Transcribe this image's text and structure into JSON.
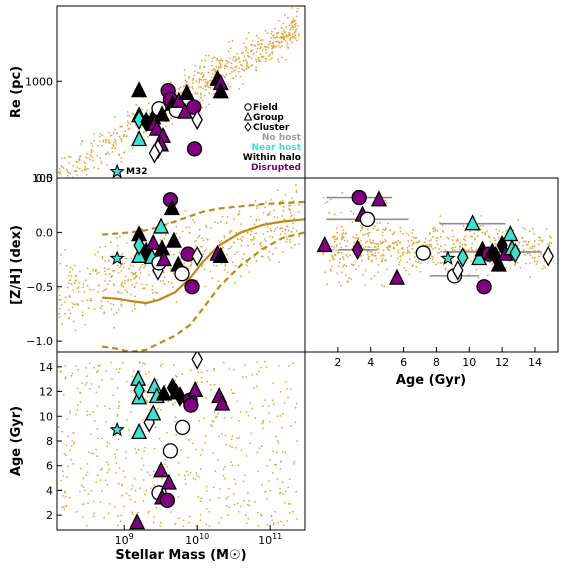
{
  "chart_data": [
    {
      "panel": "top-left",
      "type": "scatter",
      "xlabel": "",
      "ylabel": "Re (pc)",
      "xscale": "log",
      "yscale": "log",
      "xlim": [
        120000000.0,
        300000000000.0
      ],
      "ylim": [
        100,
        6000
      ],
      "xticks": [],
      "yticks": [
        {
          "v": 100,
          "label": "100"
        },
        {
          "v": 1000,
          "label": "1000"
        }
      ],
      "legend": {
        "placement": "lower-right",
        "entries": [
          {
            "marker": "circle",
            "label": "Field",
            "color": "#000000"
          },
          {
            "marker": "triangle",
            "label": "Group",
            "color": "#000000"
          },
          {
            "marker": "diamond",
            "label": "Cluster",
            "color": "#000000"
          },
          {
            "marker": "none",
            "label": "No host",
            "color": "#9a9a9a"
          },
          {
            "marker": "none",
            "label": "Near host",
            "color": "#40e0d0"
          },
          {
            "marker": "none",
            "label": "Within halo",
            "color": "#000000"
          },
          {
            "marker": "none",
            "label": "Disrupted",
            "color": "#800080"
          }
        ]
      },
      "annotations": [
        {
          "text": "M32",
          "x": 800000000.0,
          "y": 116,
          "marker": "star"
        }
      ],
      "background_color": "#e8a33a",
      "points": [
        {
          "x": 1600000000.0,
          "y": 800,
          "m": "triangle",
          "c": "black"
        },
        {
          "x": 1600000000.0,
          "y": 440,
          "m": "triangle",
          "c": "turquoise"
        },
        {
          "x": 1600000000.0,
          "y": 400,
          "m": "diamond",
          "c": "turquoise"
        },
        {
          "x": 1600000000.0,
          "y": 250,
          "m": "triangle",
          "c": "turquoise"
        },
        {
          "x": 2000000000.0,
          "y": 380,
          "m": "diamond",
          "c": "black"
        },
        {
          "x": 2500000000.0,
          "y": 420,
          "m": "triangle",
          "c": "black"
        },
        {
          "x": 2600000000.0,
          "y": 360,
          "m": "triangle",
          "c": "purple"
        },
        {
          "x": 2800000000.0,
          "y": 320,
          "m": "triangle",
          "c": "purple"
        },
        {
          "x": 3000000000.0,
          "y": 520,
          "m": "circle",
          "c": "white"
        },
        {
          "x": 3300000000.0,
          "y": 450,
          "m": "triangle",
          "c": "black"
        },
        {
          "x": 3400000000.0,
          "y": 270,
          "m": "triangle",
          "c": "purple"
        },
        {
          "x": 3200000000.0,
          "y": 220,
          "m": "triangle",
          "c": "purple"
        },
        {
          "x": 2900000000.0,
          "y": 200,
          "m": "diamond",
          "c": "white"
        },
        {
          "x": 2600000000.0,
          "y": 180,
          "m": "diamond",
          "c": "white"
        },
        {
          "x": 4000000000.0,
          "y": 800,
          "m": "circle",
          "c": "purple"
        },
        {
          "x": 4300000000.0,
          "y": 650,
          "m": "circle",
          "c": "purple"
        },
        {
          "x": 4600000000.0,
          "y": 580,
          "m": "triangle",
          "c": "black"
        },
        {
          "x": 5200000000.0,
          "y": 500,
          "m": "circle",
          "c": "white"
        },
        {
          "x": 5600000000.0,
          "y": 620,
          "m": "triangle",
          "c": "purple"
        },
        {
          "x": 6800000000.0,
          "y": 480,
          "m": "triangle",
          "c": "purple"
        },
        {
          "x": 7200000000.0,
          "y": 750,
          "m": "triangle",
          "c": "black"
        },
        {
          "x": 9000000000.0,
          "y": 540,
          "m": "circle",
          "c": "purple"
        },
        {
          "x": 10000000000.0,
          "y": 400,
          "m": "diamond",
          "c": "white"
        },
        {
          "x": 9200000000.0,
          "y": 200,
          "m": "circle",
          "c": "purple"
        },
        {
          "x": 19000000000.0,
          "y": 1050,
          "m": "triangle",
          "c": "black"
        },
        {
          "x": 21000000000.0,
          "y": 950,
          "m": "triangle",
          "c": "purple"
        },
        {
          "x": 21000000000.0,
          "y": 780,
          "m": "triangle",
          "c": "black"
        },
        {
          "x": 800000000.0,
          "y": 116,
          "m": "star",
          "c": "turquoise"
        }
      ]
    },
    {
      "panel": "middle-left",
      "type": "scatter",
      "xlabel": "",
      "ylabel": "[Z/H] (dex)",
      "xscale": "log",
      "xlim": [
        120000000.0,
        300000000000.0
      ],
      "ylim": [
        -1.1,
        0.5
      ],
      "yticks": [
        {
          "v": -1.0,
          "label": "−1.0"
        },
        {
          "v": -0.5,
          "label": "−0.5"
        },
        {
          "v": 0.0,
          "label": "0.0"
        },
        {
          "v": 0.5,
          "label": "0.5"
        }
      ],
      "lines": [
        {
          "style": "solid",
          "color": "#c08a1a",
          "x": [
            500000000.0,
            800000000.0,
            1200000000.0,
            2000000000.0,
            3000000000.0,
            5000000000.0,
            8000000000.0,
            12000000000.0,
            20000000000.0,
            40000000000.0,
            80000000000.0,
            150000000000.0,
            300000000000.0
          ],
          "y": [
            -0.6,
            -0.61,
            -0.63,
            -0.65,
            -0.62,
            -0.55,
            -0.42,
            -0.27,
            -0.12,
            0.0,
            0.07,
            0.1,
            0.12
          ]
        },
        {
          "style": "dashed",
          "color": "#c08a1a",
          "x": [
            500000000.0,
            800000000.0,
            1200000000.0,
            2000000000.0,
            3000000000.0,
            5000000000.0,
            8000000000.0,
            12000000000.0,
            20000000000.0,
            40000000000.0,
            80000000000.0,
            150000000000.0,
            300000000000.0
          ],
          "y": [
            -0.02,
            -0.01,
            0.0,
            0.02,
            0.05,
            0.1,
            0.15,
            0.19,
            0.22,
            0.24,
            0.26,
            0.27,
            0.28
          ]
        },
        {
          "style": "dashed",
          "color": "#c08a1a",
          "x": [
            500000000.0,
            800000000.0,
            1200000000.0,
            2000000000.0,
            3000000000.0,
            5000000000.0,
            8000000000.0,
            12000000000.0,
            20000000000.0,
            40000000000.0,
            80000000000.0,
            150000000000.0,
            300000000000.0
          ],
          "y": [
            -1.05,
            -1.07,
            -1.1,
            -1.08,
            -1.02,
            -0.95,
            -0.85,
            -0.7,
            -0.5,
            -0.3,
            -0.15,
            -0.05,
            0.0
          ]
        }
      ],
      "points": [
        {
          "x": 800000000.0,
          "y": -0.24,
          "m": "star",
          "c": "turquoise"
        },
        {
          "x": 1600000000.0,
          "y": -0.02,
          "m": "triangle",
          "c": "black"
        },
        {
          "x": 1600000000.0,
          "y": -0.22,
          "m": "triangle",
          "c": "turquoise"
        },
        {
          "x": 1600000000.0,
          "y": -0.12,
          "m": "diamond",
          "c": "turquoise"
        },
        {
          "x": 2000000000.0,
          "y": -0.18,
          "m": "diamond",
          "c": "black"
        },
        {
          "x": 2400000000.0,
          "y": -0.23,
          "m": "triangle",
          "c": "turquoise"
        },
        {
          "x": 2500000000.0,
          "y": -0.1,
          "m": "triangle",
          "c": "purple"
        },
        {
          "x": 2900000000.0,
          "y": -0.35,
          "m": "diamond",
          "c": "white"
        },
        {
          "x": 3000000000.0,
          "y": -0.28,
          "m": "circle",
          "c": "white"
        },
        {
          "x": 3200000000.0,
          "y": 0.05,
          "m": "triangle",
          "c": "turquoise"
        },
        {
          "x": 3300000000.0,
          "y": -0.15,
          "m": "triangle",
          "c": "black"
        },
        {
          "x": 3500000000.0,
          "y": -0.25,
          "m": "triangle",
          "c": "purple"
        },
        {
          "x": 4300000000.0,
          "y": 0.3,
          "m": "circle",
          "c": "purple"
        },
        {
          "x": 4500000000.0,
          "y": 0.22,
          "m": "triangle",
          "c": "black"
        },
        {
          "x": 4800000000.0,
          "y": -0.08,
          "m": "triangle",
          "c": "black"
        },
        {
          "x": 5500000000.0,
          "y": -0.3,
          "m": "triangle",
          "c": "black"
        },
        {
          "x": 6200000000.0,
          "y": -0.38,
          "m": "circle",
          "c": "white"
        },
        {
          "x": 7500000000.0,
          "y": -0.2,
          "m": "circle",
          "c": "purple"
        },
        {
          "x": 8500000000.0,
          "y": -0.5,
          "m": "circle",
          "c": "purple"
        },
        {
          "x": 10000000000.0,
          "y": -0.22,
          "m": "diamond",
          "c": "white"
        },
        {
          "x": 19000000000.0,
          "y": -0.2,
          "m": "triangle",
          "c": "purple"
        },
        {
          "x": 21000000000.0,
          "y": -0.22,
          "m": "triangle",
          "c": "black"
        }
      ]
    },
    {
      "panel": "bottom-left",
      "type": "scatter",
      "xlabel": "Stellar Mass (M☉)",
      "ylabel": "Age (Gyr)",
      "xscale": "log",
      "xlim": [
        120000000.0,
        300000000000.0
      ],
      "ylim": [
        0.8,
        15.2
      ],
      "xticks": [
        {
          "v": 1000000000.0,
          "base": "10",
          "exp": "9"
        },
        {
          "v": 10000000000.0,
          "base": "10",
          "exp": "10"
        },
        {
          "v": 100000000000.0,
          "base": "10",
          "exp": "11"
        }
      ],
      "yticks": [
        {
          "v": 2,
          "label": "2"
        },
        {
          "v": 4,
          "label": "4"
        },
        {
          "v": 6,
          "label": "6"
        },
        {
          "v": 8,
          "label": "8"
        },
        {
          "v": 10,
          "label": "10"
        },
        {
          "v": 12,
          "label": "12"
        },
        {
          "v": 14,
          "label": "14"
        }
      ],
      "points": [
        {
          "x": 800000000.0,
          "y": 8.9,
          "m": "star",
          "c": "turquoise"
        },
        {
          "x": 1550000000.0,
          "y": 13.0,
          "m": "triangle",
          "c": "turquoise"
        },
        {
          "x": 1600000000.0,
          "y": 11.5,
          "m": "triangle",
          "c": "turquoise"
        },
        {
          "x": 1600000000.0,
          "y": 12.1,
          "m": "diamond",
          "c": "turquoise"
        },
        {
          "x": 1600000000.0,
          "y": 8.7,
          "m": "triangle",
          "c": "turquoise"
        },
        {
          "x": 1500000000.0,
          "y": 1.4,
          "m": "triangle",
          "c": "purple"
        },
        {
          "x": 2200000000.0,
          "y": 9.5,
          "m": "diamond",
          "c": "white"
        },
        {
          "x": 2500000000.0,
          "y": 10.2,
          "m": "triangle",
          "c": "turquoise"
        },
        {
          "x": 2600000000.0,
          "y": 12.4,
          "m": "triangle",
          "c": "turquoise"
        },
        {
          "x": 2800000000.0,
          "y": 11.6,
          "m": "triangle",
          "c": "turquoise"
        },
        {
          "x": 3000000000.0,
          "y": 3.8,
          "m": "circle",
          "c": "white"
        },
        {
          "x": 3200000000.0,
          "y": 5.6,
          "m": "triangle",
          "c": "purple"
        },
        {
          "x": 3300000000.0,
          "y": 3.4,
          "m": "triangle",
          "c": "purple"
        },
        {
          "x": 3500000000.0,
          "y": 11.8,
          "m": "triangle",
          "c": "black"
        },
        {
          "x": 3900000000.0,
          "y": 3.2,
          "m": "circle",
          "c": "purple"
        },
        {
          "x": 4100000000.0,
          "y": 4.6,
          "m": "triangle",
          "c": "purple"
        },
        {
          "x": 4300000000.0,
          "y": 7.2,
          "m": "circle",
          "c": "white"
        },
        {
          "x": 4600000000.0,
          "y": 12.3,
          "m": "diamond",
          "c": "black"
        },
        {
          "x": 5200000000.0,
          "y": 11.9,
          "m": "triangle",
          "c": "black"
        },
        {
          "x": 5800000000.0,
          "y": 11.6,
          "m": "diamond",
          "c": "black"
        },
        {
          "x": 6300000000.0,
          "y": 9.1,
          "m": "circle",
          "c": "white"
        },
        {
          "x": 8000000000.0,
          "y": 11.3,
          "m": "circle",
          "c": "purple"
        },
        {
          "x": 8200000000.0,
          "y": 10.9,
          "m": "circle",
          "c": "purple"
        },
        {
          "x": 10000000000.0,
          "y": 14.6,
          "m": "diamond",
          "c": "white"
        },
        {
          "x": 9400000000.0,
          "y": 12.1,
          "m": "triangle",
          "c": "purple"
        },
        {
          "x": 20000000000.0,
          "y": 11.6,
          "m": "triangle",
          "c": "purple"
        },
        {
          "x": 22000000000.0,
          "y": 11.0,
          "m": "triangle",
          "c": "purple"
        }
      ]
    },
    {
      "panel": "middle-right",
      "type": "scatter",
      "xlabel": "Age (Gyr)",
      "ylabel": "",
      "xlim": [
        0,
        15.4
      ],
      "ylim": [
        -1.1,
        0.5
      ],
      "xticks": [
        {
          "v": 2,
          "label": "2"
        },
        {
          "v": 4,
          "label": "4"
        },
        {
          "v": 6,
          "label": "6"
        },
        {
          "v": 8,
          "label": "8"
        },
        {
          "v": 10,
          "label": "10"
        },
        {
          "v": 12,
          "label": "12"
        },
        {
          "v": 14,
          "label": "14"
        }
      ],
      "points": [
        {
          "x": 1.2,
          "y": -0.12,
          "m": "triangle",
          "c": "purple"
        },
        {
          "x": 3.2,
          "y": -0.16,
          "m": "diamond",
          "c": "purple",
          "xerr": 1.2
        },
        {
          "x": 3.3,
          "y": 0.32,
          "m": "circle",
          "c": "purple",
          "xerr": 2.0
        },
        {
          "x": 3.5,
          "y": 0.16,
          "m": "triangle",
          "c": "purple"
        },
        {
          "x": 3.8,
          "y": 0.12,
          "m": "circle",
          "c": "white",
          "xerr": 2.5
        },
        {
          "x": 4.5,
          "y": 0.3,
          "m": "triangle",
          "c": "purple"
        },
        {
          "x": 5.6,
          "y": -0.42,
          "m": "triangle",
          "c": "purple"
        },
        {
          "x": 7.2,
          "y": -0.19,
          "m": "circle",
          "c": "white"
        },
        {
          "x": 8.7,
          "y": -0.24,
          "m": "star",
          "c": "turquoise"
        },
        {
          "x": 9.1,
          "y": -0.4,
          "m": "circle",
          "c": "white",
          "xerr": 1.5
        },
        {
          "x": 9.3,
          "y": -0.35,
          "m": "diamond",
          "c": "white"
        },
        {
          "x": 9.6,
          "y": -0.23,
          "m": "diamond",
          "c": "turquoise"
        },
        {
          "x": 10.2,
          "y": 0.08,
          "m": "triangle",
          "c": "turquoise",
          "xerr": 2.0
        },
        {
          "x": 10.6,
          "y": -0.24,
          "m": "triangle",
          "c": "turquoise"
        },
        {
          "x": 10.8,
          "y": -0.16,
          "m": "triangle",
          "c": "black"
        },
        {
          "x": 10.9,
          "y": -0.5,
          "m": "circle",
          "c": "purple"
        },
        {
          "x": 11.2,
          "y": -0.2,
          "m": "circle",
          "c": "purple"
        },
        {
          "x": 11.4,
          "y": -0.18,
          "m": "triangle",
          "c": "black",
          "xerr": 3.0
        },
        {
          "x": 11.6,
          "y": -0.22,
          "m": "diamond",
          "c": "black"
        },
        {
          "x": 11.8,
          "y": -0.3,
          "m": "triangle",
          "c": "black"
        },
        {
          "x": 12.0,
          "y": -0.12,
          "m": "diamond",
          "c": "black"
        },
        {
          "x": 12.2,
          "y": -0.2,
          "m": "triangle",
          "c": "purple"
        },
        {
          "x": 12.5,
          "y": -0.02,
          "m": "triangle",
          "c": "turquoise"
        },
        {
          "x": 12.6,
          "y": -0.15,
          "m": "triangle",
          "c": "turquoise"
        },
        {
          "x": 12.8,
          "y": -0.19,
          "m": "diamond",
          "c": "turquoise"
        },
        {
          "x": 14.8,
          "y": -0.22,
          "m": "diamond",
          "c": "white"
        }
      ]
    }
  ]
}
